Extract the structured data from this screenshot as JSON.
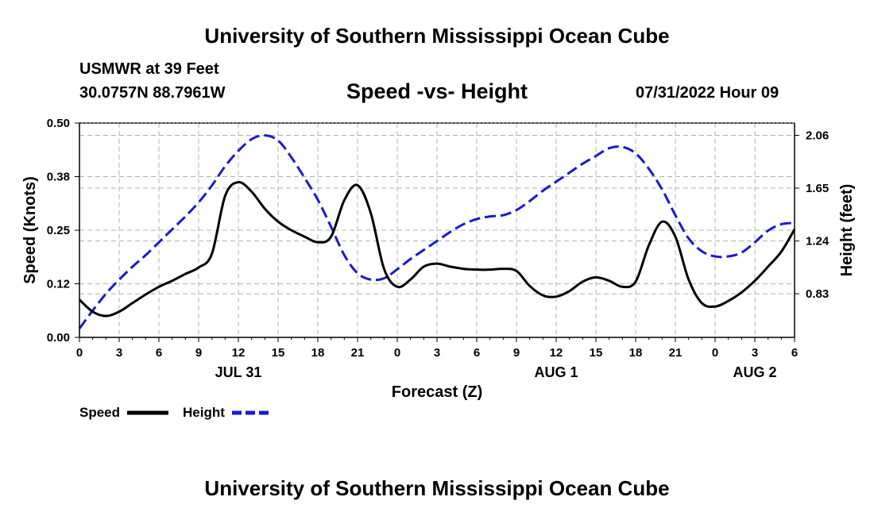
{
  "header": {
    "title": "University of Southern Mississippi Ocean Cube",
    "station": "USMWR at 39 Feet",
    "coords": "30.0757N  88.7961W",
    "chart_title": "Speed -vs- Height",
    "datetime": "07/31/2022 Hour 09"
  },
  "footer": {
    "title": "University of Southern Mississippi Ocean Cube"
  },
  "colors": {
    "speed": "#000000",
    "height": "#1a1acc",
    "grid": "#b0b0b0"
  },
  "chart_data": {
    "type": "line",
    "title": "Speed -vs- Height",
    "xlabel": "Forecast (Z)",
    "ylabel": "Speed (Knots)",
    "y2label": "Height (feet)",
    "xlim": [
      0,
      54
    ],
    "ylim": [
      0,
      0.5
    ],
    "y2lim": [
      0.4915,
      2.1555
    ],
    "x_ticks": [
      0,
      3,
      6,
      9,
      12,
      15,
      18,
      21,
      24,
      27,
      30,
      33,
      36,
      39,
      42,
      45,
      48,
      51,
      54
    ],
    "x_tick_labels": [
      "0",
      "3",
      "6",
      "9",
      "12",
      "15",
      "18",
      "21",
      "0",
      "3",
      "6",
      "9",
      "12",
      "15",
      "18",
      "21",
      "0",
      "3",
      "6"
    ],
    "y_ticks": [
      0.0,
      0.125,
      0.25,
      0.375,
      0.5
    ],
    "y_tick_labels": [
      "0.00",
      "0.12",
      "0.25",
      "0.38",
      "0.50"
    ],
    "y2_ticks": [
      0.83,
      1.24,
      1.65,
      2.06
    ],
    "y2_tick_labels": [
      "0.83",
      "1.24",
      "1.65",
      "2.06"
    ],
    "date_labels": [
      {
        "x": 12,
        "label": "JUL 31"
      },
      {
        "x": 36,
        "label": "AUG 1"
      },
      {
        "x": 51,
        "label": "AUG 2"
      }
    ],
    "legend": [
      {
        "name": "Speed",
        "style": "solid"
      },
      {
        "name": "Height",
        "style": "dashed"
      }
    ],
    "series": [
      {
        "name": "Speed",
        "axis": "left",
        "x": [
          0,
          1,
          2,
          3,
          4,
          5,
          6,
          7,
          8,
          9,
          10,
          11,
          12,
          13,
          14,
          15,
          16,
          17,
          18,
          19,
          20,
          21,
          22,
          23,
          24,
          25,
          26,
          27,
          28,
          29,
          30,
          31,
          32,
          33,
          34,
          35,
          36,
          37,
          38,
          39,
          40,
          41,
          42,
          43,
          44,
          45,
          46,
          47,
          48,
          49,
          50,
          51,
          52,
          53,
          54
        ],
        "values": [
          0.088,
          0.06,
          0.05,
          0.06,
          0.08,
          0.1,
          0.118,
          0.132,
          0.148,
          0.163,
          0.195,
          0.33,
          0.362,
          0.34,
          0.3,
          0.27,
          0.25,
          0.235,
          0.222,
          0.235,
          0.32,
          0.355,
          0.29,
          0.16,
          0.118,
          0.135,
          0.165,
          0.172,
          0.165,
          0.16,
          0.158,
          0.158,
          0.16,
          0.155,
          0.12,
          0.098,
          0.095,
          0.108,
          0.13,
          0.14,
          0.132,
          0.118,
          0.13,
          0.215,
          0.27,
          0.235,
          0.135,
          0.08,
          0.072,
          0.085,
          0.105,
          0.132,
          0.165,
          0.2,
          0.252
        ]
      },
      {
        "name": "Height",
        "axis": "right",
        "x": [
          0,
          1,
          2,
          3,
          4,
          5,
          6,
          7,
          8,
          9,
          10,
          11,
          12,
          13,
          14,
          15,
          16,
          17,
          18,
          19,
          20,
          21,
          22,
          23,
          24,
          25,
          26,
          27,
          28,
          29,
          30,
          31,
          32,
          33,
          34,
          35,
          36,
          37,
          38,
          39,
          40,
          41,
          42,
          43,
          44,
          45,
          46,
          47,
          48,
          49,
          50,
          51,
          52,
          53,
          54
        ],
        "values": [
          0.56,
          0.7,
          0.83,
          0.94,
          1.04,
          1.13,
          1.23,
          1.33,
          1.43,
          1.54,
          1.67,
          1.82,
          1.94,
          2.03,
          2.06,
          2.02,
          1.89,
          1.73,
          1.56,
          1.35,
          1.13,
          0.99,
          0.94,
          0.95,
          1.02,
          1.1,
          1.17,
          1.24,
          1.31,
          1.37,
          1.41,
          1.43,
          1.44,
          1.48,
          1.55,
          1.63,
          1.7,
          1.77,
          1.84,
          1.9,
          1.96,
          1.97,
          1.92,
          1.8,
          1.64,
          1.44,
          1.26,
          1.16,
          1.12,
          1.12,
          1.15,
          1.23,
          1.32,
          1.37,
          1.38
        ]
      }
    ]
  }
}
